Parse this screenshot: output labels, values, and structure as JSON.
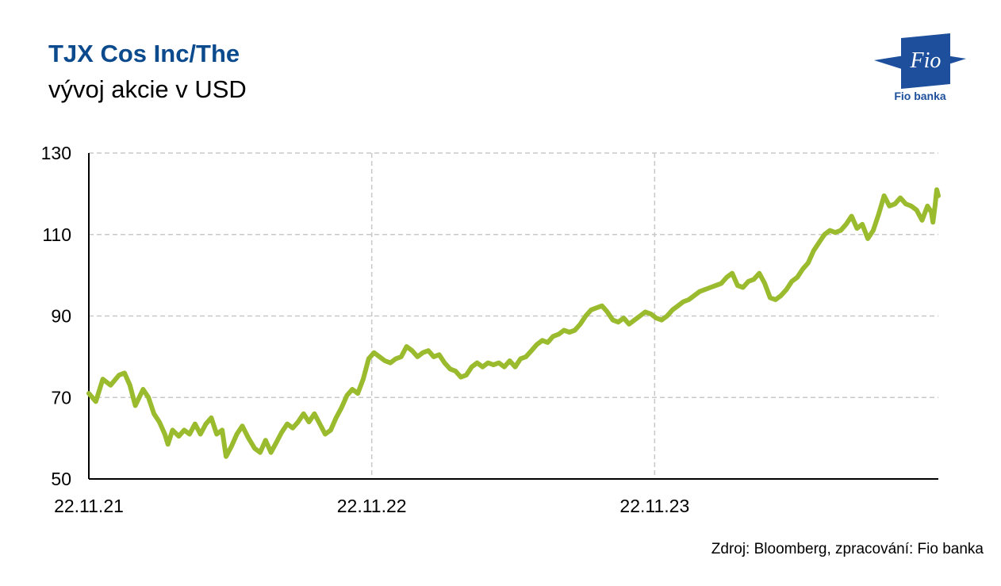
{
  "header": {
    "title": "TJX Cos Inc/The",
    "subtitle": "vývoj akcie v USD"
  },
  "logo": {
    "text": "Fio",
    "caption": "Fio banka",
    "color": "#1d4f9c"
  },
  "source": "Zdroj: Bloomberg, zpracování: Fio banka",
  "chart_data": {
    "type": "line",
    "title": "TJX Cos Inc/The",
    "subtitle": "vývoj akcie v USD",
    "xlabel": "",
    "ylabel": "",
    "ylim": [
      50,
      130
    ],
    "yticks": [
      50,
      70,
      90,
      110,
      130
    ],
    "xticks": [
      "22.11.21",
      "22.11.22",
      "22.11.23"
    ],
    "x_range": [
      "2021-11-22",
      "2024-11-22"
    ],
    "grid": true,
    "line_color": "#9bbb2f",
    "series": [
      {
        "values": [
          [
            "2021-11-22",
            71
          ],
          [
            "2021-12-01",
            69
          ],
          [
            "2021-12-10",
            74.5
          ],
          [
            "2021-12-20",
            73
          ],
          [
            "2021-12-31",
            75.5
          ],
          [
            "2022-01-07",
            76
          ],
          [
            "2022-01-14",
            73
          ],
          [
            "2022-01-21",
            68
          ],
          [
            "2022-01-31",
            72
          ],
          [
            "2022-02-07",
            70
          ],
          [
            "2022-02-14",
            66
          ],
          [
            "2022-02-21",
            64
          ],
          [
            "2022-02-28",
            61
          ],
          [
            "2022-03-04",
            58.5
          ],
          [
            "2022-03-10",
            62
          ],
          [
            "2022-03-18",
            60.5
          ],
          [
            "2022-03-25",
            62
          ],
          [
            "2022-04-01",
            61
          ],
          [
            "2022-04-08",
            63.5
          ],
          [
            "2022-04-15",
            61
          ],
          [
            "2022-04-22",
            63.5
          ],
          [
            "2022-04-29",
            65
          ],
          [
            "2022-05-06",
            61
          ],
          [
            "2022-05-13",
            62
          ],
          [
            "2022-05-18",
            55.5
          ],
          [
            "2022-05-25",
            58
          ],
          [
            "2022-06-01",
            61
          ],
          [
            "2022-06-08",
            63
          ],
          [
            "2022-06-16",
            60
          ],
          [
            "2022-06-24",
            57.5
          ],
          [
            "2022-07-01",
            56.5
          ],
          [
            "2022-07-08",
            59.5
          ],
          [
            "2022-07-15",
            56.5
          ],
          [
            "2022-07-22",
            59
          ],
          [
            "2022-07-29",
            61.5
          ],
          [
            "2022-08-05",
            63.5
          ],
          [
            "2022-08-12",
            62.5
          ],
          [
            "2022-08-19",
            64
          ],
          [
            "2022-08-26",
            66
          ],
          [
            "2022-09-02",
            64
          ],
          [
            "2022-09-09",
            66
          ],
          [
            "2022-09-16",
            63.5
          ],
          [
            "2022-09-23",
            61
          ],
          [
            "2022-09-30",
            62
          ],
          [
            "2022-10-07",
            65
          ],
          [
            "2022-10-14",
            67.5
          ],
          [
            "2022-10-21",
            70.5
          ],
          [
            "2022-10-28",
            72
          ],
          [
            "2022-11-04",
            71
          ],
          [
            "2022-11-11",
            74.5
          ],
          [
            "2022-11-18",
            79.5
          ],
          [
            "2022-11-25",
            81
          ],
          [
            "2022-12-02",
            80
          ],
          [
            "2022-12-09",
            79
          ],
          [
            "2022-12-16",
            78.5
          ],
          [
            "2022-12-23",
            79.5
          ],
          [
            "2022-12-30",
            80
          ],
          [
            "2023-01-06",
            82.5
          ],
          [
            "2023-01-13",
            81.5
          ],
          [
            "2023-01-20",
            80
          ],
          [
            "2023-01-27",
            81
          ],
          [
            "2023-02-03",
            81.5
          ],
          [
            "2023-02-10",
            80
          ],
          [
            "2023-02-17",
            80.5
          ],
          [
            "2023-02-24",
            78.5
          ],
          [
            "2023-03-03",
            77
          ],
          [
            "2023-03-10",
            76.5
          ],
          [
            "2023-03-17",
            75
          ],
          [
            "2023-03-24",
            75.5
          ],
          [
            "2023-03-31",
            77.5
          ],
          [
            "2023-04-07",
            78.5
          ],
          [
            "2023-04-14",
            77.5
          ],
          [
            "2023-04-21",
            78.5
          ],
          [
            "2023-04-28",
            78
          ],
          [
            "2023-05-05",
            78.5
          ],
          [
            "2023-05-12",
            77.5
          ],
          [
            "2023-05-19",
            79
          ],
          [
            "2023-05-26",
            77.5
          ],
          [
            "2023-06-02",
            79.5
          ],
          [
            "2023-06-09",
            80
          ],
          [
            "2023-06-16",
            81.5
          ],
          [
            "2023-06-23",
            83
          ],
          [
            "2023-06-30",
            84
          ],
          [
            "2023-07-07",
            83.5
          ],
          [
            "2023-07-14",
            85
          ],
          [
            "2023-07-21",
            85.5
          ],
          [
            "2023-07-28",
            86.5
          ],
          [
            "2023-08-04",
            86
          ],
          [
            "2023-08-11",
            86.5
          ],
          [
            "2023-08-18",
            88
          ],
          [
            "2023-08-25",
            90
          ],
          [
            "2023-09-01",
            91.5
          ],
          [
            "2023-09-08",
            92
          ],
          [
            "2023-09-15",
            92.5
          ],
          [
            "2023-09-22",
            91
          ],
          [
            "2023-09-29",
            89
          ],
          [
            "2023-10-06",
            88.5
          ],
          [
            "2023-10-13",
            89.5
          ],
          [
            "2023-10-20",
            88
          ],
          [
            "2023-10-27",
            89
          ],
          [
            "2023-11-03",
            90
          ],
          [
            "2023-11-10",
            91
          ],
          [
            "2023-11-17",
            90.5
          ],
          [
            "2023-11-24",
            89.5
          ],
          [
            "2023-12-01",
            89
          ],
          [
            "2023-12-08",
            90
          ],
          [
            "2023-12-15",
            91.5
          ],
          [
            "2023-12-22",
            92.5
          ],
          [
            "2023-12-29",
            93.5
          ],
          [
            "2024-01-05",
            94
          ],
          [
            "2024-01-12",
            95
          ],
          [
            "2024-01-19",
            96
          ],
          [
            "2024-01-26",
            96.5
          ],
          [
            "2024-02-02",
            97
          ],
          [
            "2024-02-09",
            97.5
          ],
          [
            "2024-02-16",
            98
          ],
          [
            "2024-02-23",
            99.5
          ],
          [
            "2024-03-01",
            100.5
          ],
          [
            "2024-03-08",
            97.5
          ],
          [
            "2024-03-15",
            97
          ],
          [
            "2024-03-22",
            98.5
          ],
          [
            "2024-03-29",
            99
          ],
          [
            "2024-04-05",
            100.5
          ],
          [
            "2024-04-12",
            98
          ],
          [
            "2024-04-19",
            94.5
          ],
          [
            "2024-04-26",
            94
          ],
          [
            "2024-05-03",
            95
          ],
          [
            "2024-05-10",
            96.5
          ],
          [
            "2024-05-17",
            98.5
          ],
          [
            "2024-05-24",
            99.5
          ],
          [
            "2024-05-31",
            101.5
          ],
          [
            "2024-06-07",
            103
          ],
          [
            "2024-06-14",
            106
          ],
          [
            "2024-06-21",
            108
          ],
          [
            "2024-06-28",
            110
          ],
          [
            "2024-07-05",
            111
          ],
          [
            "2024-07-12",
            110.5
          ],
          [
            "2024-07-19",
            111
          ],
          [
            "2024-07-26",
            112.5
          ],
          [
            "2024-08-02",
            114.5
          ],
          [
            "2024-08-09",
            111.5
          ],
          [
            "2024-08-16",
            112.5
          ],
          [
            "2024-08-23",
            109
          ],
          [
            "2024-08-30",
            111
          ],
          [
            "2024-09-06",
            115
          ],
          [
            "2024-09-13",
            119.5
          ],
          [
            "2024-09-20",
            117
          ],
          [
            "2024-09-27",
            117.5
          ],
          [
            "2024-10-04",
            119
          ],
          [
            "2024-10-11",
            117.5
          ],
          [
            "2024-10-18",
            117
          ],
          [
            "2024-10-25",
            116
          ],
          [
            "2024-11-01",
            113.5
          ],
          [
            "2024-11-08",
            117
          ],
          [
            "2024-11-13",
            115.5
          ],
          [
            "2024-11-15",
            113
          ],
          [
            "2024-11-18",
            117.5
          ],
          [
            "2024-11-20",
            121
          ],
          [
            "2024-11-22",
            119.5
          ]
        ]
      }
    ]
  }
}
